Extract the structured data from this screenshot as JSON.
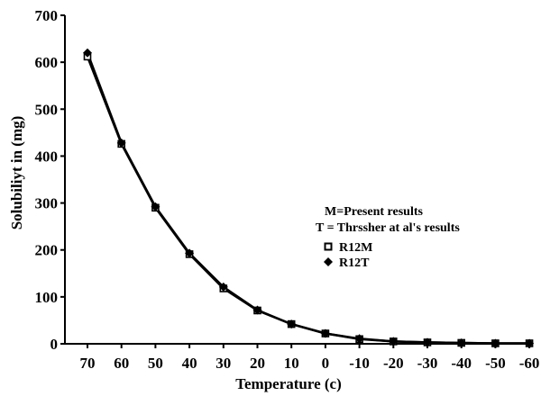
{
  "chart_data": {
    "type": "line",
    "title": "",
    "xlabel": "Temperature (c)",
    "ylabel": "Solubiliyt in (mg)",
    "categories": [
      "70",
      "60",
      "50",
      "40",
      "30",
      "20",
      "10",
      "0",
      "-10",
      "-20",
      "-30",
      "-40",
      "-50",
      "-60"
    ],
    "ylim": [
      0,
      700
    ],
    "yticks": [
      "0",
      "100",
      "200",
      "300",
      "400",
      "500",
      "600",
      "700"
    ],
    "grid": false,
    "annotations": [
      "M=Present results",
      "T = Thrssher at al's  results"
    ],
    "legend_position": "center-right",
    "series": [
      {
        "name": "R12M",
        "marker": "square",
        "values": [
          612,
          426,
          290,
          191,
          118,
          71,
          42,
          22,
          10,
          5,
          3,
          2,
          1,
          1
        ]
      },
      {
        "name": "R12T",
        "marker": "diamond",
        "values": [
          620,
          428,
          292,
          193,
          121,
          72,
          42,
          22,
          11,
          5,
          3,
          2,
          1,
          1
        ]
      }
    ],
    "colors": {
      "line": "#000000",
      "marker_fill": "#000000"
    }
  }
}
